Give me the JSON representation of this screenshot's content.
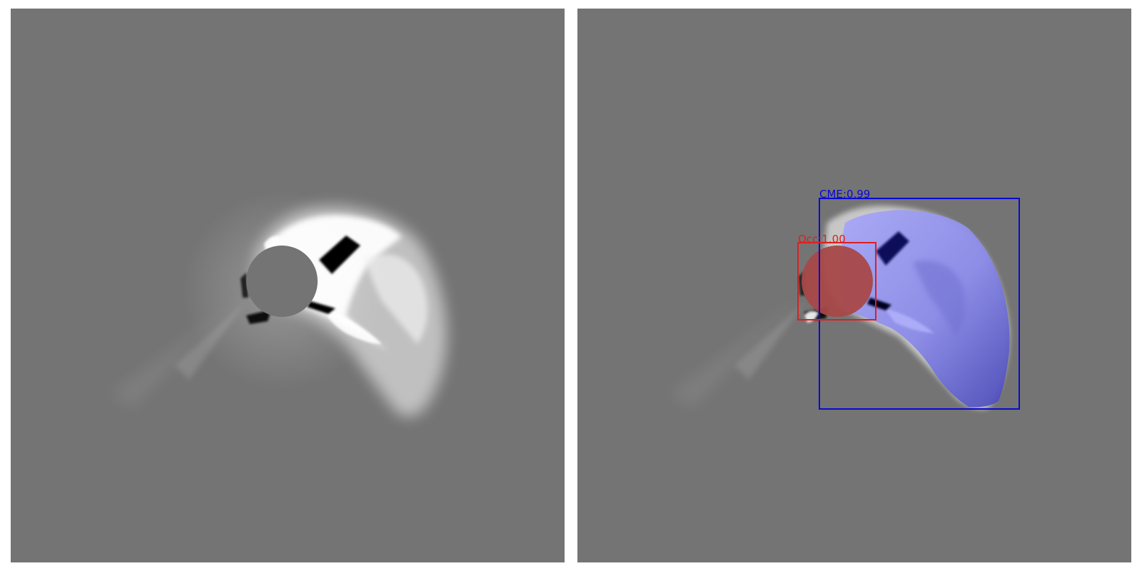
{
  "colors": {
    "background_gray": "#747474",
    "cme_box": "#0a0ad0",
    "occ_box": "#e01e1e",
    "cme_mask": "#9a9af0",
    "occ_mask": "#a84848"
  },
  "panels": {
    "original": {
      "description_name": "original-frame"
    },
    "annotated": {
      "detections": [
        {
          "label": "CME:0.99",
          "class": "CME",
          "score": 0.99
        },
        {
          "label": "Occ:1.00",
          "class": "Occ",
          "score": 1.0
        }
      ]
    }
  }
}
